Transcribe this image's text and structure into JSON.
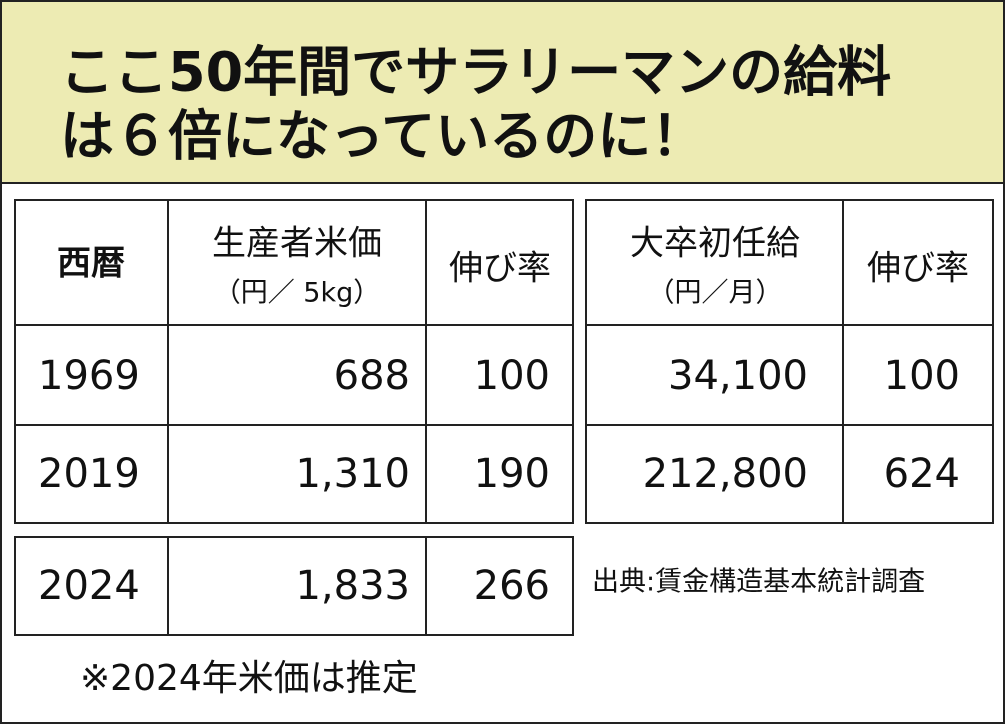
{
  "header": {
    "title_lines": [
      "ここ50年間でサラリーマンの給料",
      "は６倍になっているのに！"
    ]
  },
  "rice_table": {
    "headers": {
      "year": "西暦",
      "price": "生産者米価",
      "price_unit": "（円／ 5kg）",
      "growth": "伸び率"
    },
    "rows": [
      [
        "1969",
        "688",
        "100"
      ],
      [
        "2019",
        "1,310",
        "190"
      ],
      [
        "2024",
        "1,833",
        "266"
      ]
    ]
  },
  "salary_table": {
    "headers": {
      "salary": "大卒初任給",
      "salary_unit": "（円／月）",
      "growth": "伸び率"
    },
    "rows": [
      [
        "34,100",
        "100"
      ],
      [
        "212,800",
        "624"
      ]
    ]
  },
  "source": "出典:賃金構造基本統計調査",
  "note": "※2024年米価は推定"
}
